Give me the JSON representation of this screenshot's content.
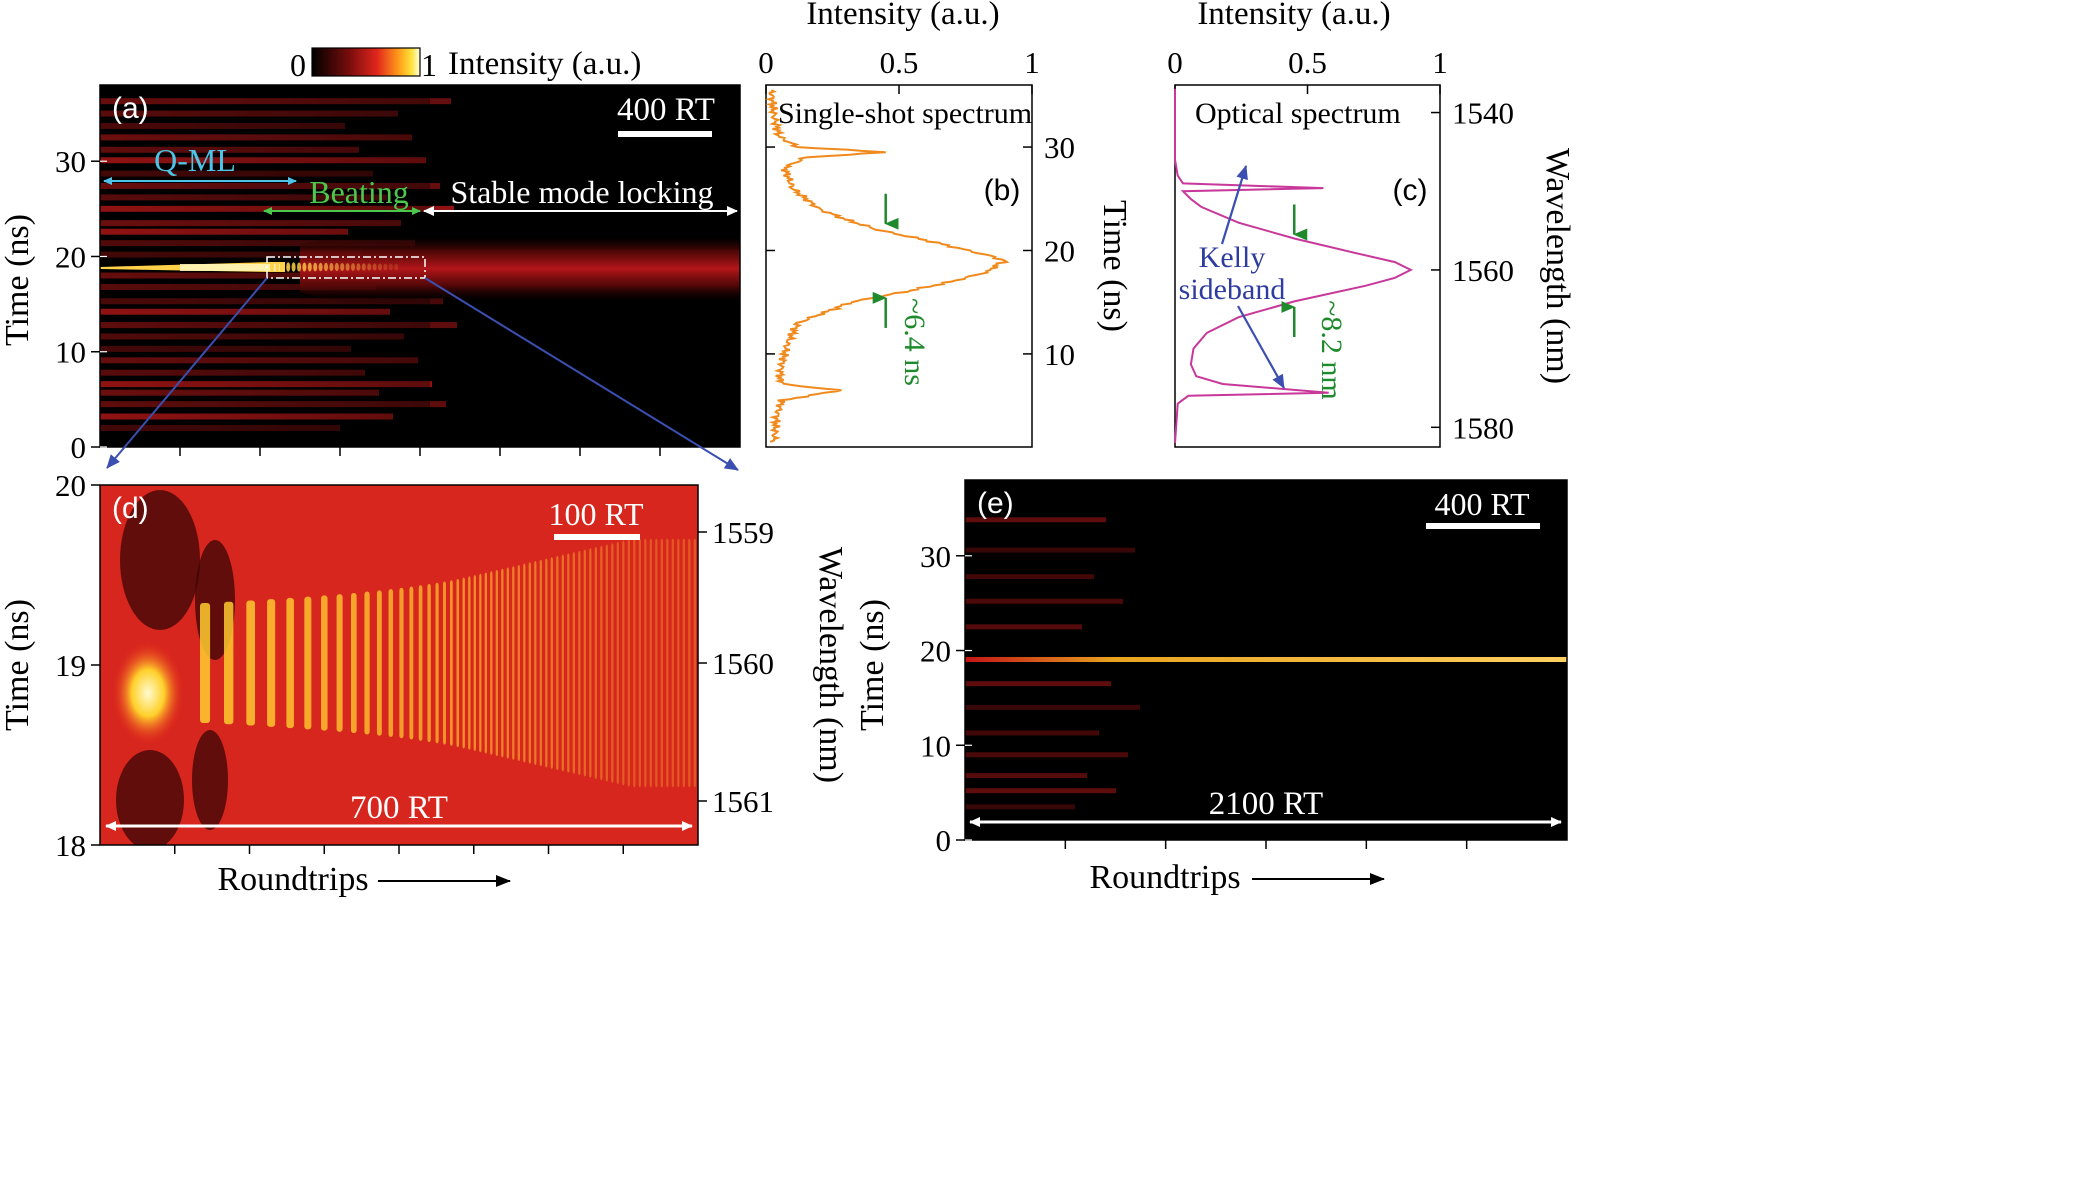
{
  "chart_data": [
    {
      "id": "a",
      "type": "heatmap",
      "panel_label": "(a)",
      "xlabel": "",
      "ylabel": "Time (ns)",
      "ylim": [
        0,
        38
      ],
      "yticks": [
        0,
        10,
        20,
        30
      ],
      "x_ticks_count": 7,
      "colorbar": {
        "min_label": "0",
        "max_label": "1",
        "label": "Intensity (a.u.)"
      },
      "scale_bar": "400 RT",
      "regions": [
        {
          "label": "Q-ML",
          "color": "#4fc3e6"
        },
        {
          "label": "Beating",
          "color": "#4cc94c"
        },
        {
          "label": "Stable mode locking",
          "color": "#ffffff"
        }
      ],
      "pulse_time_ns": 19
    },
    {
      "id": "b",
      "type": "line",
      "panel_label": "(b)",
      "title": "Single-shot spectrum",
      "xlabel": "Intensity (a.u.)",
      "ylabel": "Time (ns)",
      "xticks": [
        "0",
        "0.5",
        "1"
      ],
      "xlim": [
        0,
        1
      ],
      "ylim": [
        1,
        36
      ],
      "yticks": [
        10,
        20,
        30
      ],
      "series_color": "#f08a1c",
      "annotation": "~6.4 ns",
      "fwhm_time_ns": [
        15.8,
        22.2
      ],
      "time_ns": [
        1.5,
        4,
        5.5,
        6.5,
        7,
        7.5,
        9,
        11,
        13,
        15,
        16,
        17,
        18,
        18.5,
        19,
        19.5,
        20,
        21,
        22,
        23,
        24,
        26,
        28,
        29,
        29.5,
        30,
        31,
        33,
        35.5
      ],
      "intensity": [
        0.03,
        0.04,
        0.06,
        0.28,
        0.08,
        0.05,
        0.06,
        0.08,
        0.12,
        0.32,
        0.52,
        0.7,
        0.84,
        0.86,
        0.9,
        0.84,
        0.76,
        0.6,
        0.42,
        0.3,
        0.2,
        0.1,
        0.07,
        0.15,
        0.45,
        0.12,
        0.05,
        0.03,
        0.02
      ]
    },
    {
      "id": "c",
      "type": "line",
      "panel_label": "(c)",
      "title": "Optical spectrum",
      "xlabel": "Intensity (a.u.)",
      "ylabel": "Wavelength (nm)",
      "xticks": [
        "0",
        "0.5",
        "1"
      ],
      "xlim": [
        0,
        1
      ],
      "ylim": [
        1536.5,
        1582.5
      ],
      "yticks": [
        1540,
        1560,
        1580
      ],
      "series_color": "#c8379a",
      "annotation": "~8.2 nm",
      "sideband_label": [
        "Kelly",
        "sideband"
      ],
      "fwhm_nm": [
        1556,
        1564.2
      ],
      "wavelength_nm": [
        1537,
        1546,
        1548,
        1549,
        1549.6,
        1550,
        1551,
        1552,
        1554,
        1556,
        1558,
        1559,
        1560,
        1561,
        1562,
        1564,
        1566,
        1568,
        1570,
        1572,
        1573.5,
        1574.5,
        1575.6,
        1576,
        1577,
        1582
      ],
      "intensity": [
        0.0,
        0.0,
        0.01,
        0.03,
        0.56,
        0.03,
        0.06,
        0.1,
        0.24,
        0.45,
        0.7,
        0.83,
        0.89,
        0.83,
        0.72,
        0.45,
        0.24,
        0.12,
        0.07,
        0.06,
        0.08,
        0.18,
        0.58,
        0.05,
        0.01,
        0.0
      ]
    },
    {
      "id": "d",
      "type": "heatmap",
      "panel_label": "(d)",
      "xlabel": "Roundtrips",
      "ylabel": "Time (ns)",
      "right_label": "Wavelength (nm)",
      "ylim": [
        18,
        20
      ],
      "yticks": [
        18,
        19,
        20
      ],
      "right_ticks": [
        1559,
        1560,
        1561
      ],
      "x_ticks_count": 7,
      "scale_bar": "100 RT",
      "span_label": "700 RT"
    },
    {
      "id": "e",
      "type": "heatmap",
      "panel_label": "(e)",
      "xlabel": "Roundtrips",
      "ylabel": "Time (ns)",
      "ylim": [
        0,
        38
      ],
      "yticks": [
        0,
        10,
        20,
        30
      ],
      "x_ticks_count": 5,
      "scale_bar": "400 RT",
      "span_label": "2100 RT",
      "pulse_time_ns": 19
    }
  ],
  "colors": {
    "zoom_lines": "#3b4fb0",
    "fwhm_arrows": "#1f8a2c",
    "annotation_green": "#1f8a2c",
    "sideband_label": "#2e3d9e"
  }
}
